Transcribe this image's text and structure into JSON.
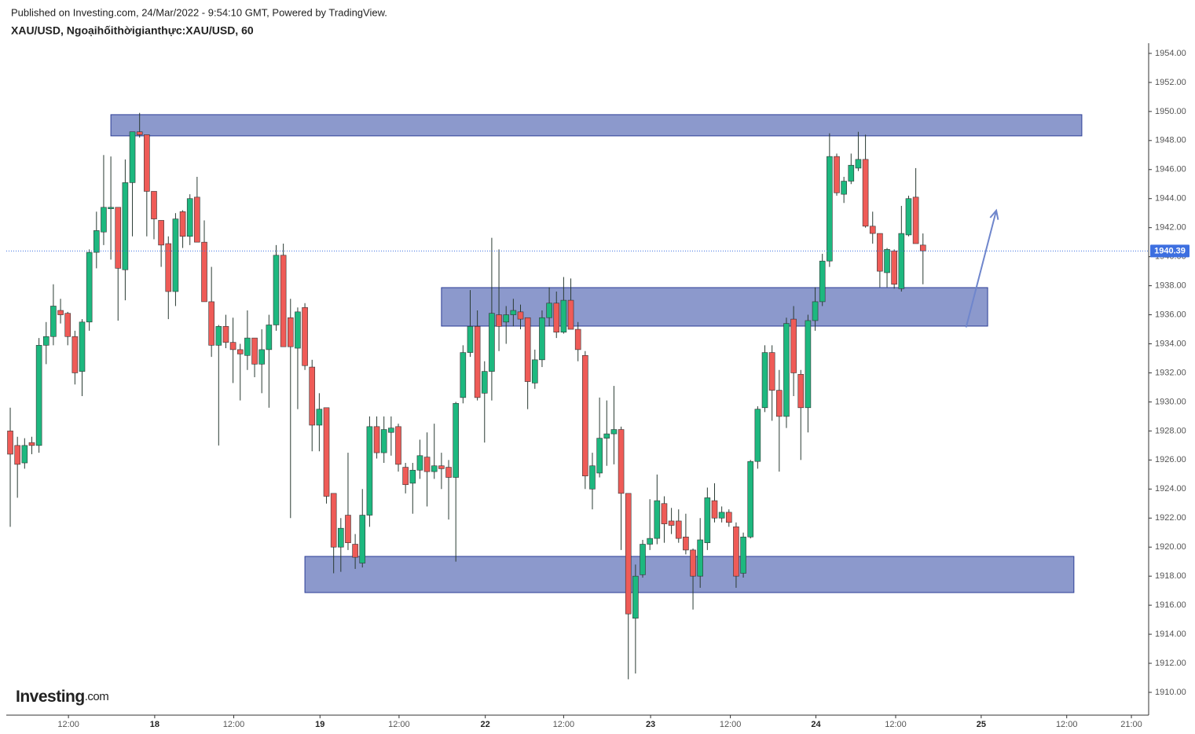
{
  "chart_data": {
    "type": "candlestick",
    "subtitle": "Published on Investing.com, 24/Mar/2022 - 9:54:10 GMT, Powered by TradingView.",
    "title": "XAU/USD, Ngoạihốithờigianthực:XAU/USD, 60",
    "logo": {
      "name": "Investing",
      "suffix": ".com"
    },
    "up_color": "#1db87f",
    "down_color": "#ef5b57",
    "wick_color": "#2a3b33",
    "x": [
      0,
      1,
      2,
      3,
      4,
      5,
      6,
      7,
      8,
      9,
      10,
      11,
      12,
      13,
      14,
      15,
      16,
      17,
      18,
      19,
      20,
      21,
      22,
      23,
      24,
      25,
      26,
      27,
      28,
      29,
      30,
      31,
      32,
      33,
      34,
      35,
      36,
      37,
      38,
      39,
      40,
      41,
      42,
      43,
      44,
      45,
      46,
      47,
      48,
      49,
      50,
      51,
      52,
      53,
      54,
      55,
      56,
      57,
      58,
      59,
      60,
      61,
      62,
      63,
      64,
      65,
      66,
      67,
      68,
      69,
      70,
      71,
      72,
      73,
      74,
      75,
      76,
      77,
      78,
      79,
      80,
      81,
      82,
      83,
      84,
      85,
      86,
      87,
      88,
      89,
      90,
      91,
      92,
      93,
      94,
      95,
      96,
      97,
      98,
      99,
      100,
      101,
      102,
      103,
      104,
      105,
      106,
      107,
      108,
      109,
      110,
      111,
      112,
      113,
      114,
      115,
      116,
      117,
      118,
      119,
      120,
      121,
      122,
      123,
      124,
      125,
      126,
      127
    ],
    "open": [
      1928.0,
      1927.0,
      1925.8,
      1927.2,
      1927.0,
      1933.9,
      1934.5,
      1936.3,
      1936.1,
      1934.5,
      1932.1,
      1935.5,
      1940.3,
      1941.7,
      1943.3,
      1943.4,
      1939.1,
      1945.1,
      1948.6,
      1948.4,
      1944.5,
      1942.5,
      1940.9,
      1937.6,
      1943.1,
      1941.4,
      1944.1,
      1941.0,
      1936.9,
      1933.9,
      1935.2,
      1934.1,
      1933.6,
      1933.2,
      1934.4,
      1932.6,
      1933.6,
      1935.3,
      1940.1,
      1935.8,
      1933.7,
      1936.5,
      1932.4,
      1928.4,
      1929.6,
      1923.7,
      1920.0,
      1922.2,
      1920.2,
      1918.9,
      1922.2,
      1928.3,
      1926.5,
      1927.9,
      1928.3,
      1925.5,
      1924.4,
      1925.3,
      1926.2,
      1925.2,
      1925.6,
      1925.5,
      1924.8,
      1930.3,
      1933.4,
      1935.2,
      1930.6,
      1932.1,
      1936.0,
      1935.5,
      1936.0,
      1936.2,
      1935.8,
      1931.3,
      1932.9,
      1935.8,
      1936.8,
      1934.8,
      1937.0,
      1935.0,
      1933.2,
      1924.0,
      1925.1,
      1927.5,
      1927.8,
      1928.1,
      1923.7,
      1915.1,
      1918.1,
      1920.2,
      1920.6,
      1923.0,
      1921.8,
      1921.8,
      1920.7,
      1919.8,
      1918.0,
      1920.3,
      1923.2,
      1922.0,
      1922.4,
      1921.4,
      1918.2,
      1920.7,
      1925.9,
      1929.6,
      1933.4,
      1930.8,
      1929.0,
      1935.7,
      1931.9,
      1929.6,
      1935.6,
      1936.9,
      1939.7,
      1946.9,
      1944.3,
      1945.2,
      1946.1,
      1946.7,
      1942.1,
      1941.6,
      1938.9,
      1940.4,
      1937.8,
      1941.5,
      1944.1,
      1940.8
    ],
    "high": [
      1929.6,
      1927.6,
      1927.5,
      1927.6,
      1934.4,
      1935.5,
      1938.1,
      1937.1,
      1936.2,
      1934.9,
      1935.7,
      1940.5,
      1943.1,
      1947.0,
      1946.9,
      1943.4,
      1946.7,
      1948.6,
      1949.9,
      1948.4,
      1944.5,
      1942.5,
      1941.4,
      1943.0,
      1943.2,
      1944.3,
      1945.5,
      1942.5,
      1939.3,
      1935.3,
      1936.0,
      1935.8,
      1934.0,
      1936.3,
      1934.4,
      1935.0,
      1936.0,
      1940.8,
      1940.9,
      1937.1,
      1936.5,
      1936.8,
      1932.9,
      1930.6,
      1929.6,
      1923.7,
      1922.0,
      1926.5,
      1920.9,
      1924.0,
      1929.0,
      1929.0,
      1929.0,
      1929.0,
      1928.5,
      1925.8,
      1925.8,
      1927.4,
      1927.9,
      1928.5,
      1926.5,
      1926.0,
      1930.0,
      1933.9,
      1937.7,
      1936.3,
      1932.8,
      1941.3,
      1940.5,
      1936.6,
      1937.1,
      1936.7,
      1935.8,
      1933.6,
      1936.3,
      1937.9,
      1937.6,
      1938.6,
      1938.5,
      1935.5,
      1933.5,
      1926.5,
      1930.3,
      1930.1,
      1931.1,
      1928.3,
      1923.7,
      1918.8,
      1920.5,
      1923.3,
      1925.0,
      1923.5,
      1922.7,
      1922.6,
      1922.3,
      1919.9,
      1922.0,
      1924.1,
      1924.4,
      1922.8,
      1922.6,
      1921.7,
      1921.0,
      1926.0,
      1929.7,
      1933.9,
      1933.9,
      1932.2,
      1935.8,
      1936.6,
      1932.2,
      1936.0,
      1937.9,
      1940.2,
      1948.5,
      1947.1,
      1945.5,
      1947.1,
      1948.6,
      1948.4,
      1943.1,
      1941.6,
      1940.6,
      1940.5,
      1943.5,
      1944.2,
      1946.1,
      1941.6
    ],
    "low": [
      1921.4,
      1923.4,
      1925.4,
      1926.4,
      1926.5,
      1932.6,
      1933.9,
      1935.4,
      1933.9,
      1931.2,
      1930.4,
      1934.9,
      1939.2,
      1940.8,
      1939.8,
      1935.6,
      1937.0,
      1941.4,
      1948.2,
      1941.4,
      1941.2,
      1939.3,
      1935.7,
      1936.6,
      1940.6,
      1940.8,
      1941.0,
      1936.9,
      1933.1,
      1927.0,
      1933.7,
      1931.3,
      1930.1,
      1932.2,
      1931.7,
      1930.6,
      1929.6,
      1934.9,
      1933.8,
      1922.0,
      1929.5,
      1932.2,
      1926.6,
      1926.6,
      1923.0,
      1918.2,
      1918.3,
      1919.8,
      1918.5,
      1918.6,
      1921.4,
      1926.1,
      1925.8,
      1926.3,
      1925.2,
      1923.7,
      1922.3,
      1924.7,
      1922.8,
      1924.7,
      1924.0,
      1921.9,
      1919.0,
      1929.9,
      1933.1,
      1930.1,
      1927.2,
      1930.1,
      1933.5,
      1934.0,
      1935.2,
      1935.0,
      1929.5,
      1930.9,
      1932.4,
      1935.2,
      1934.4,
      1934.7,
      1935.0,
      1932.8,
      1924.0,
      1922.6,
      1924.8,
      1925.6,
      1925.7,
      1919.8,
      1910.9,
      1911.3,
      1917.9,
      1919.8,
      1920.2,
      1920.3,
      1920.9,
      1920.3,
      1919.5,
      1915.7,
      1917.2,
      1919.8,
      1921.7,
      1921.7,
      1921.4,
      1917.2,
      1917.9,
      1920.6,
      1925.4,
      1929.3,
      1928.7,
      1925.2,
      1928.2,
      1930.4,
      1926.0,
      1927.9,
      1934.9,
      1936.6,
      1939.3,
      1944.2,
      1943.7,
      1945.0,
      1945.9,
      1942.0,
      1940.9,
      1937.9,
      1937.9,
      1937.8,
      1937.6,
      1941.4,
      1940.9,
      1938.1
    ],
    "close": [
      1926.4,
      1925.7,
      1927.0,
      1927.0,
      1933.9,
      1934.5,
      1936.6,
      1936.0,
      1934.5,
      1932.0,
      1935.5,
      1940.3,
      1941.8,
      1943.4,
      1943.4,
      1939.2,
      1945.1,
      1948.6,
      1948.4,
      1944.5,
      1942.6,
      1940.8,
      1937.6,
      1942.6,
      1941.4,
      1944.0,
      1941.0,
      1936.9,
      1933.9,
      1935.2,
      1934.1,
      1933.6,
      1933.3,
      1934.4,
      1932.6,
      1933.6,
      1935.3,
      1940.1,
      1933.8,
      1933.8,
      1936.2,
      1932.5,
      1928.4,
      1929.5,
      1923.5,
      1920.0,
      1921.3,
      1920.3,
      1919.3,
      1922.2,
      1928.3,
      1926.5,
      1928.1,
      1928.2,
      1925.7,
      1924.3,
      1925.3,
      1926.3,
      1925.2,
      1925.6,
      1925.4,
      1924.8,
      1929.9,
      1933.4,
      1935.2,
      1930.3,
      1932.1,
      1936.1,
      1935.2,
      1936.0,
      1936.3,
      1935.7,
      1931.4,
      1932.9,
      1935.8,
      1936.8,
      1934.8,
      1937.0,
      1935.0,
      1933.6,
      1924.9,
      1925.6,
      1927.5,
      1927.8,
      1928.1,
      1923.7,
      1915.4,
      1918.0,
      1920.2,
      1920.6,
      1923.2,
      1921.6,
      1921.5,
      1920.6,
      1919.8,
      1918.0,
      1920.5,
      1923.4,
      1922.0,
      1922.4,
      1921.7,
      1918.0,
      1920.7,
      1925.9,
      1929.5,
      1933.4,
      1930.8,
      1929.0,
      1935.4,
      1932.0,
      1929.6,
      1935.6,
      1936.9,
      1939.7,
      1946.9,
      1944.4,
      1945.2,
      1946.3,
      1946.7,
      1942.1,
      1941.6,
      1939.0,
      1940.5,
      1938.1,
      1941.6,
      1944.0,
      1940.9,
      1940.4
    ],
    "xlim": [
      -0.55,
      158.4
    ],
    "ylim": [
      1908.43,
      1954.7
    ],
    "xticks": [
      {
        "value": 8.1,
        "label": "12:00"
      },
      {
        "value": 20.1,
        "label": "18"
      },
      {
        "value": 31.1,
        "label": "12:00"
      },
      {
        "value": 43.1,
        "label": "19"
      },
      {
        "value": 54.1,
        "label": "12:00"
      },
      {
        "value": 66.1,
        "label": "22"
      },
      {
        "value": 77.0,
        "label": "12:00"
      },
      {
        "value": 89.1,
        "label": "23"
      },
      {
        "value": 100.2,
        "label": "12:00"
      },
      {
        "value": 112.1,
        "label": "24"
      },
      {
        "value": 123.2,
        "label": "12:00"
      },
      {
        "value": 135.1,
        "label": "25"
      },
      {
        "value": 147.0,
        "label": "12:00"
      },
      {
        "value": 156.0,
        "label": "21:00"
      }
    ],
    "yticks": [
      {
        "value": 1910,
        "label": "1910.00"
      },
      {
        "value": 1912,
        "label": "1912.00"
      },
      {
        "value": 1914,
        "label": "1914.00"
      },
      {
        "value": 1916,
        "label": "1916.00"
      },
      {
        "value": 1918,
        "label": "1918.00"
      },
      {
        "value": 1920,
        "label": "1920.00"
      },
      {
        "value": 1922,
        "label": "1922.00"
      },
      {
        "value": 1924,
        "label": "1924.00"
      },
      {
        "value": 1926,
        "label": "1926.00"
      },
      {
        "value": 1928,
        "label": "1928.00"
      },
      {
        "value": 1930,
        "label": "1930.00"
      },
      {
        "value": 1932,
        "label": "1932.00"
      },
      {
        "value": 1934,
        "label": "1934.00"
      },
      {
        "value": 1936,
        "label": "1936.00"
      },
      {
        "value": 1938,
        "label": "1938.00"
      },
      {
        "value": 1940,
        "label": "1940.00"
      },
      {
        "value": 1942,
        "label": "1942.00"
      },
      {
        "value": 1944,
        "label": "1944.00"
      },
      {
        "value": 1946,
        "label": "1946.00"
      },
      {
        "value": 1948,
        "label": "1948.00"
      },
      {
        "value": 1950,
        "label": "1950.00"
      },
      {
        "value": 1952,
        "label": "1952.00"
      },
      {
        "value": 1954,
        "label": "1954.00"
      }
    ],
    "last_price": 1940.39,
    "last_price_color": "#3d6fe0",
    "zone_fill": "#8c99cc",
    "zone_stroke": "#2b3d96",
    "zones": [
      {
        "x0": 14.0,
        "x1": 149.1,
        "y0": 1948.32,
        "y1": 1949.78
      },
      {
        "x0": 60.0,
        "x1": 136.0,
        "y0": 1935.22,
        "y1": 1937.87
      },
      {
        "x0": 41.0,
        "x1": 148.0,
        "y0": 1916.87,
        "y1": 1919.36
      }
    ],
    "arrow": {
      "x0": 133.0,
      "y0": 1935.14,
      "x1": 137.2,
      "y1": 1943.18,
      "color": "#6f86cc"
    }
  }
}
